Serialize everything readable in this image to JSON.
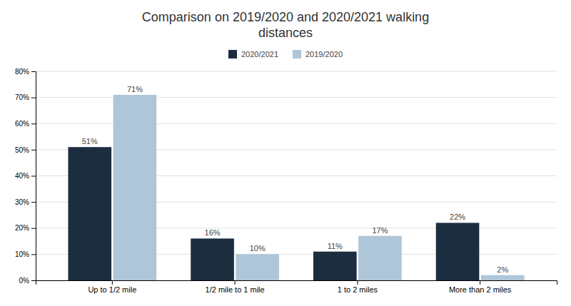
{
  "chart_data": {
    "type": "bar",
    "title": "Comparison on 2019/2020 and 2020/2021 walking\ndistances",
    "categories": [
      "Up to 1/2 mile",
      "1/2 mile to 1 mile",
      "1 to 2 miles",
      "More than 2 miles"
    ],
    "series": [
      {
        "name": "2020/2021",
        "color": "#1c2d40",
        "values": [
          51,
          16,
          11,
          22
        ],
        "value_labels": [
          "51%",
          "16%",
          "11%",
          "22%"
        ]
      },
      {
        "name": "2019/2020",
        "color": "#aec6d8",
        "values": [
          71,
          10,
          17,
          2
        ],
        "value_labels": [
          "71%",
          "10%",
          "17%",
          "2%"
        ]
      }
    ],
    "ylim": [
      0,
      80
    ],
    "yticks": [
      {
        "value": 0,
        "label": "0%"
      },
      {
        "value": 10,
        "label": "10%"
      },
      {
        "value": 20,
        "label": "20%"
      },
      {
        "value": 30,
        "label": "30%"
      },
      {
        "value": 40,
        "label": "40%"
      },
      {
        "value": 50,
        "label": "50%"
      },
      {
        "value": 60,
        "label": "60%"
      },
      {
        "value": 70,
        "label": "70%"
      },
      {
        "value": 80,
        "label": "80%"
      }
    ],
    "grid": true,
    "legend": "top",
    "data_labels": true
  }
}
